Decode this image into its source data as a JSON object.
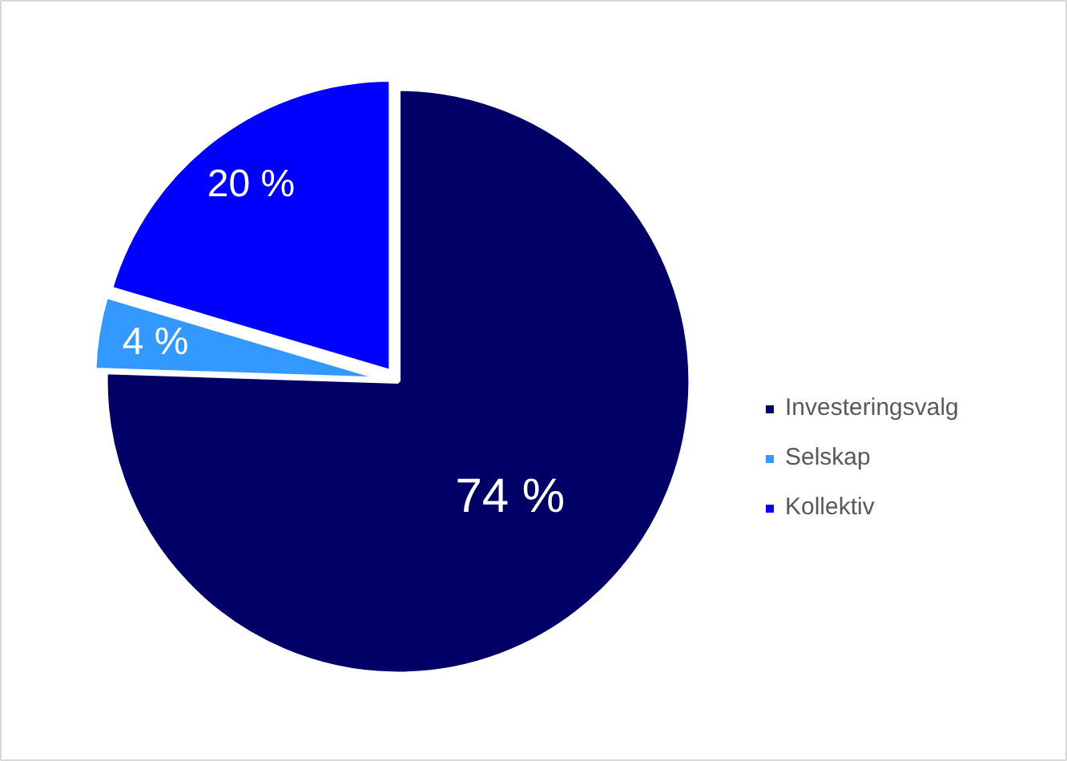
{
  "chart_data": {
    "type": "pie",
    "categories": [
      "Investeringsvalg",
      "Selskap",
      "Kollektiv"
    ],
    "values": [
      74,
      4,
      20
    ],
    "colors": [
      "#000066",
      "#3399ff",
      "#0000ff"
    ],
    "value_labels": [
      "74 %",
      "4 %",
      "20 %"
    ],
    "legend": "right"
  }
}
